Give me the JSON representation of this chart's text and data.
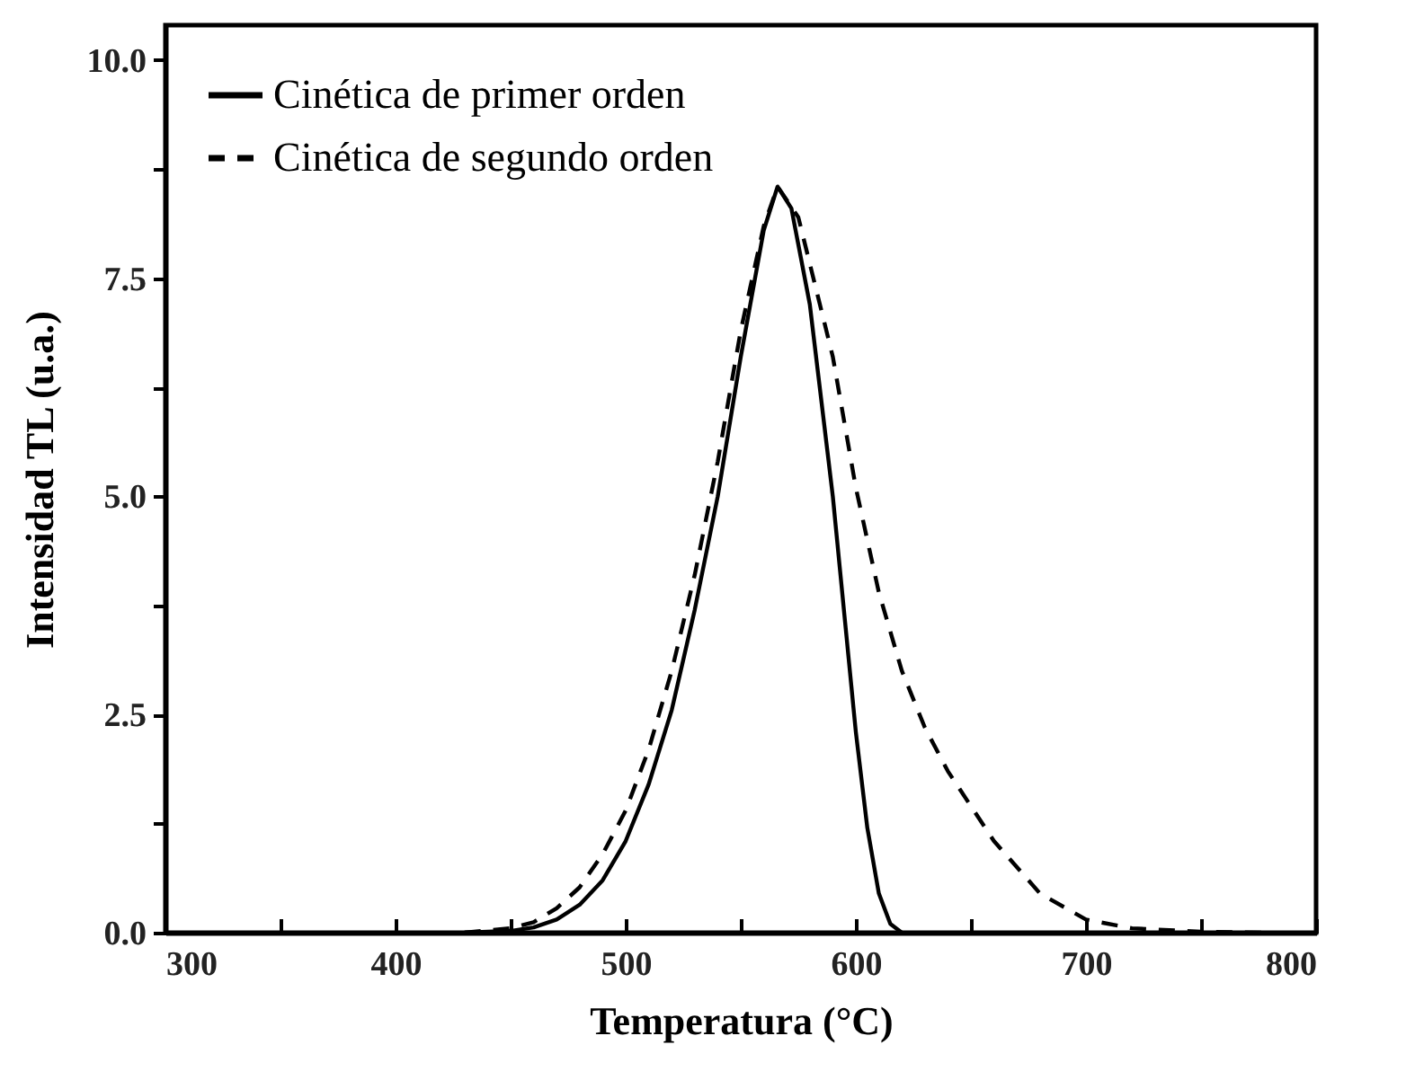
{
  "chart_data": {
    "type": "line",
    "xlabel": "Temperatura (°C)",
    "ylabel": "Intensidad TL (u.a.)",
    "xlim": [
      300,
      800
    ],
    "ylim": [
      0,
      10.4
    ],
    "xticks": [
      300,
      {
        "value": 350,
        "label": null
      },
      400,
      {
        "value": 450,
        "label": null
      },
      500,
      {
        "value": 550,
        "label": null
      },
      600,
      {
        "value": 650,
        "label": null
      },
      700,
      {
        "value": 750,
        "label": null
      },
      800
    ],
    "yticks": [
      {
        "value": 0,
        "label": "0.0"
      },
      {
        "value": 1.25,
        "label": null
      },
      {
        "value": 2.5,
        "label": "2.5"
      },
      {
        "value": 3.75,
        "label": null
      },
      {
        "value": 5,
        "label": "5.0"
      },
      {
        "value": 6.25,
        "label": null
      },
      {
        "value": 7.5,
        "label": "7.5"
      },
      {
        "value": 8.75,
        "label": null
      },
      {
        "value": 10,
        "label": "10.0"
      }
    ],
    "grid": false,
    "legend": "top left",
    "marker": "none",
    "series": [
      {
        "name": "Cinética de primer orden",
        "color": "#000000",
        "line_style": "solid",
        "x": [
          430,
          450,
          460,
          470,
          480,
          490,
          500,
          510,
          520,
          530,
          540,
          550,
          560,
          566,
          572,
          580,
          590,
          600,
          605,
          610,
          615,
          620
        ],
        "values": [
          0,
          0.02,
          0.06,
          0.15,
          0.32,
          0.6,
          1.05,
          1.7,
          2.55,
          3.7,
          5.0,
          6.6,
          8.05,
          8.55,
          8.3,
          7.2,
          5.0,
          2.3,
          1.2,
          0.45,
          0.1,
          0
        ]
      },
      {
        "name": "Cinética de segundo orden",
        "color": "#000000",
        "line_style": "dashed",
        "x": [
          430,
          450,
          460,
          470,
          480,
          490,
          500,
          510,
          520,
          530,
          540,
          550,
          560,
          566,
          575,
          590,
          600,
          610,
          620,
          630,
          640,
          650,
          660,
          680,
          700,
          720,
          750,
          780
        ],
        "values": [
          0,
          0.05,
          0.12,
          0.28,
          0.52,
          0.9,
          1.4,
          2.1,
          3.0,
          4.1,
          5.4,
          6.9,
          8.1,
          8.55,
          8.2,
          6.6,
          5.1,
          3.9,
          3.0,
          2.35,
          1.85,
          1.45,
          1.05,
          0.45,
          0.15,
          0.05,
          0.01,
          0
        ]
      }
    ]
  }
}
